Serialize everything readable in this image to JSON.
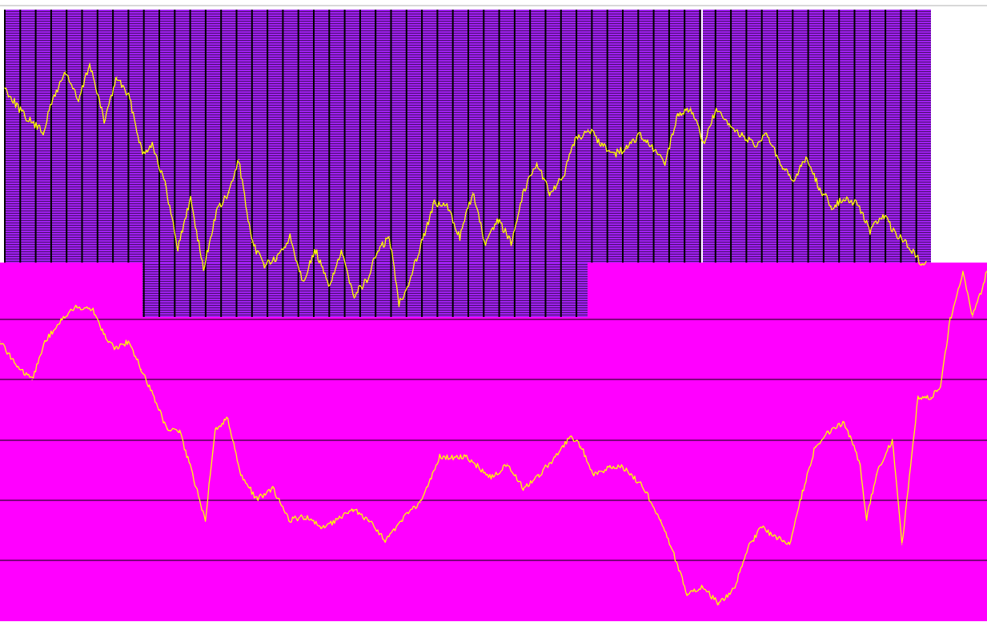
{
  "colors": {
    "upper_panel": "#a020f0",
    "upper_grid": "#000000",
    "lower_panel": "#ff00ff",
    "lower_grid": "#000000",
    "series": "#ffff00",
    "page_background": "#ffffff"
  },
  "chart_data": [
    {
      "type": "line",
      "title": "",
      "xlabel": "",
      "ylabel": "",
      "grid": true,
      "legend": "none",
      "x_range": [
        0,
        575
      ],
      "ylim": [
        0,
        100
      ],
      "series": [
        {
          "color": "#ffff00",
          "x": [
            0,
            12,
            24,
            30,
            38,
            46,
            53,
            62,
            70,
            78,
            86,
            92,
            100,
            108,
            116,
            124,
            132,
            140,
            146,
            154,
            162,
            170,
            178,
            186,
            194,
            202,
            210,
            218,
            226,
            232,
            240,
            246,
            252,
            260,
            268,
            276,
            284,
            292,
            300,
            308,
            316,
            324,
            332,
            340,
            348,
            356,
            364,
            372,
            380,
            388,
            396,
            404,
            412,
            420,
            428,
            436,
            444,
            452,
            460,
            468,
            476,
            484,
            492,
            500,
            508,
            516,
            524,
            532,
            540,
            548,
            556,
            564,
            572,
            575
          ],
          "y": [
            82,
            72,
            66,
            78,
            88,
            77,
            91,
            70,
            86,
            78,
            58,
            62,
            47,
            24,
            42,
            16,
            37,
            44,
            56,
            26,
            18,
            20,
            28,
            12,
            23,
            10,
            22,
            7,
            12,
            22,
            28,
            4,
            11,
            26,
            40,
            39,
            28,
            44,
            25,
            34,
            26,
            45,
            55,
            44,
            49,
            63,
            67,
            62,
            58,
            60,
            65,
            60,
            55,
            72,
            75,
            62,
            74,
            68,
            65,
            61,
            65,
            54,
            48,
            57,
            46,
            39,
            42,
            40,
            30,
            36,
            29,
            25,
            18,
            19
          ]
        }
      ]
    },
    {
      "type": "line",
      "title": "",
      "xlabel": "",
      "ylabel": "",
      "grid": true,
      "legend": "none",
      "x_range": [
        0,
        615
      ],
      "ylim": [
        0,
        100
      ],
      "series": [
        {
          "color": "#ffff00",
          "x": [
            0,
            12,
            20,
            28,
            38,
            48,
            58,
            66,
            72,
            80,
            88,
            96,
            104,
            112,
            120,
            128,
            134,
            142,
            150,
            160,
            170,
            180,
            190,
            200,
            210,
            220,
            230,
            240,
            250,
            262,
            274,
            290,
            296,
            306,
            316,
            326,
            336,
            346,
            356,
            362,
            370,
            380,
            388,
            400,
            412,
            420,
            428,
            438,
            448,
            458,
            466,
            474,
            484,
            492,
            500,
            508,
            516,
            526,
            536,
            540,
            546,
            556,
            562,
            572,
            580,
            586,
            592,
            600,
            606,
            612,
            615
          ],
          "y": [
            78,
            70,
            67,
            78,
            84,
            88,
            87,
            79,
            76,
            78,
            70,
            62,
            53,
            52,
            40,
            27,
            53,
            56,
            40,
            33,
            36,
            27,
            28,
            25,
            27,
            30,
            27,
            21,
            27,
            32,
            45,
            45,
            43,
            39,
            43,
            36,
            40,
            45,
            51,
            48,
            40,
            42,
            42,
            37,
            27,
            17,
            6,
            8,
            3,
            8,
            19,
            25,
            22,
            20,
            35,
            48,
            52,
            55,
            43,
            27,
            40,
            50,
            20,
            62,
            62,
            65,
            84,
            98,
            85,
            93,
            98
          ]
        }
      ]
    }
  ]
}
